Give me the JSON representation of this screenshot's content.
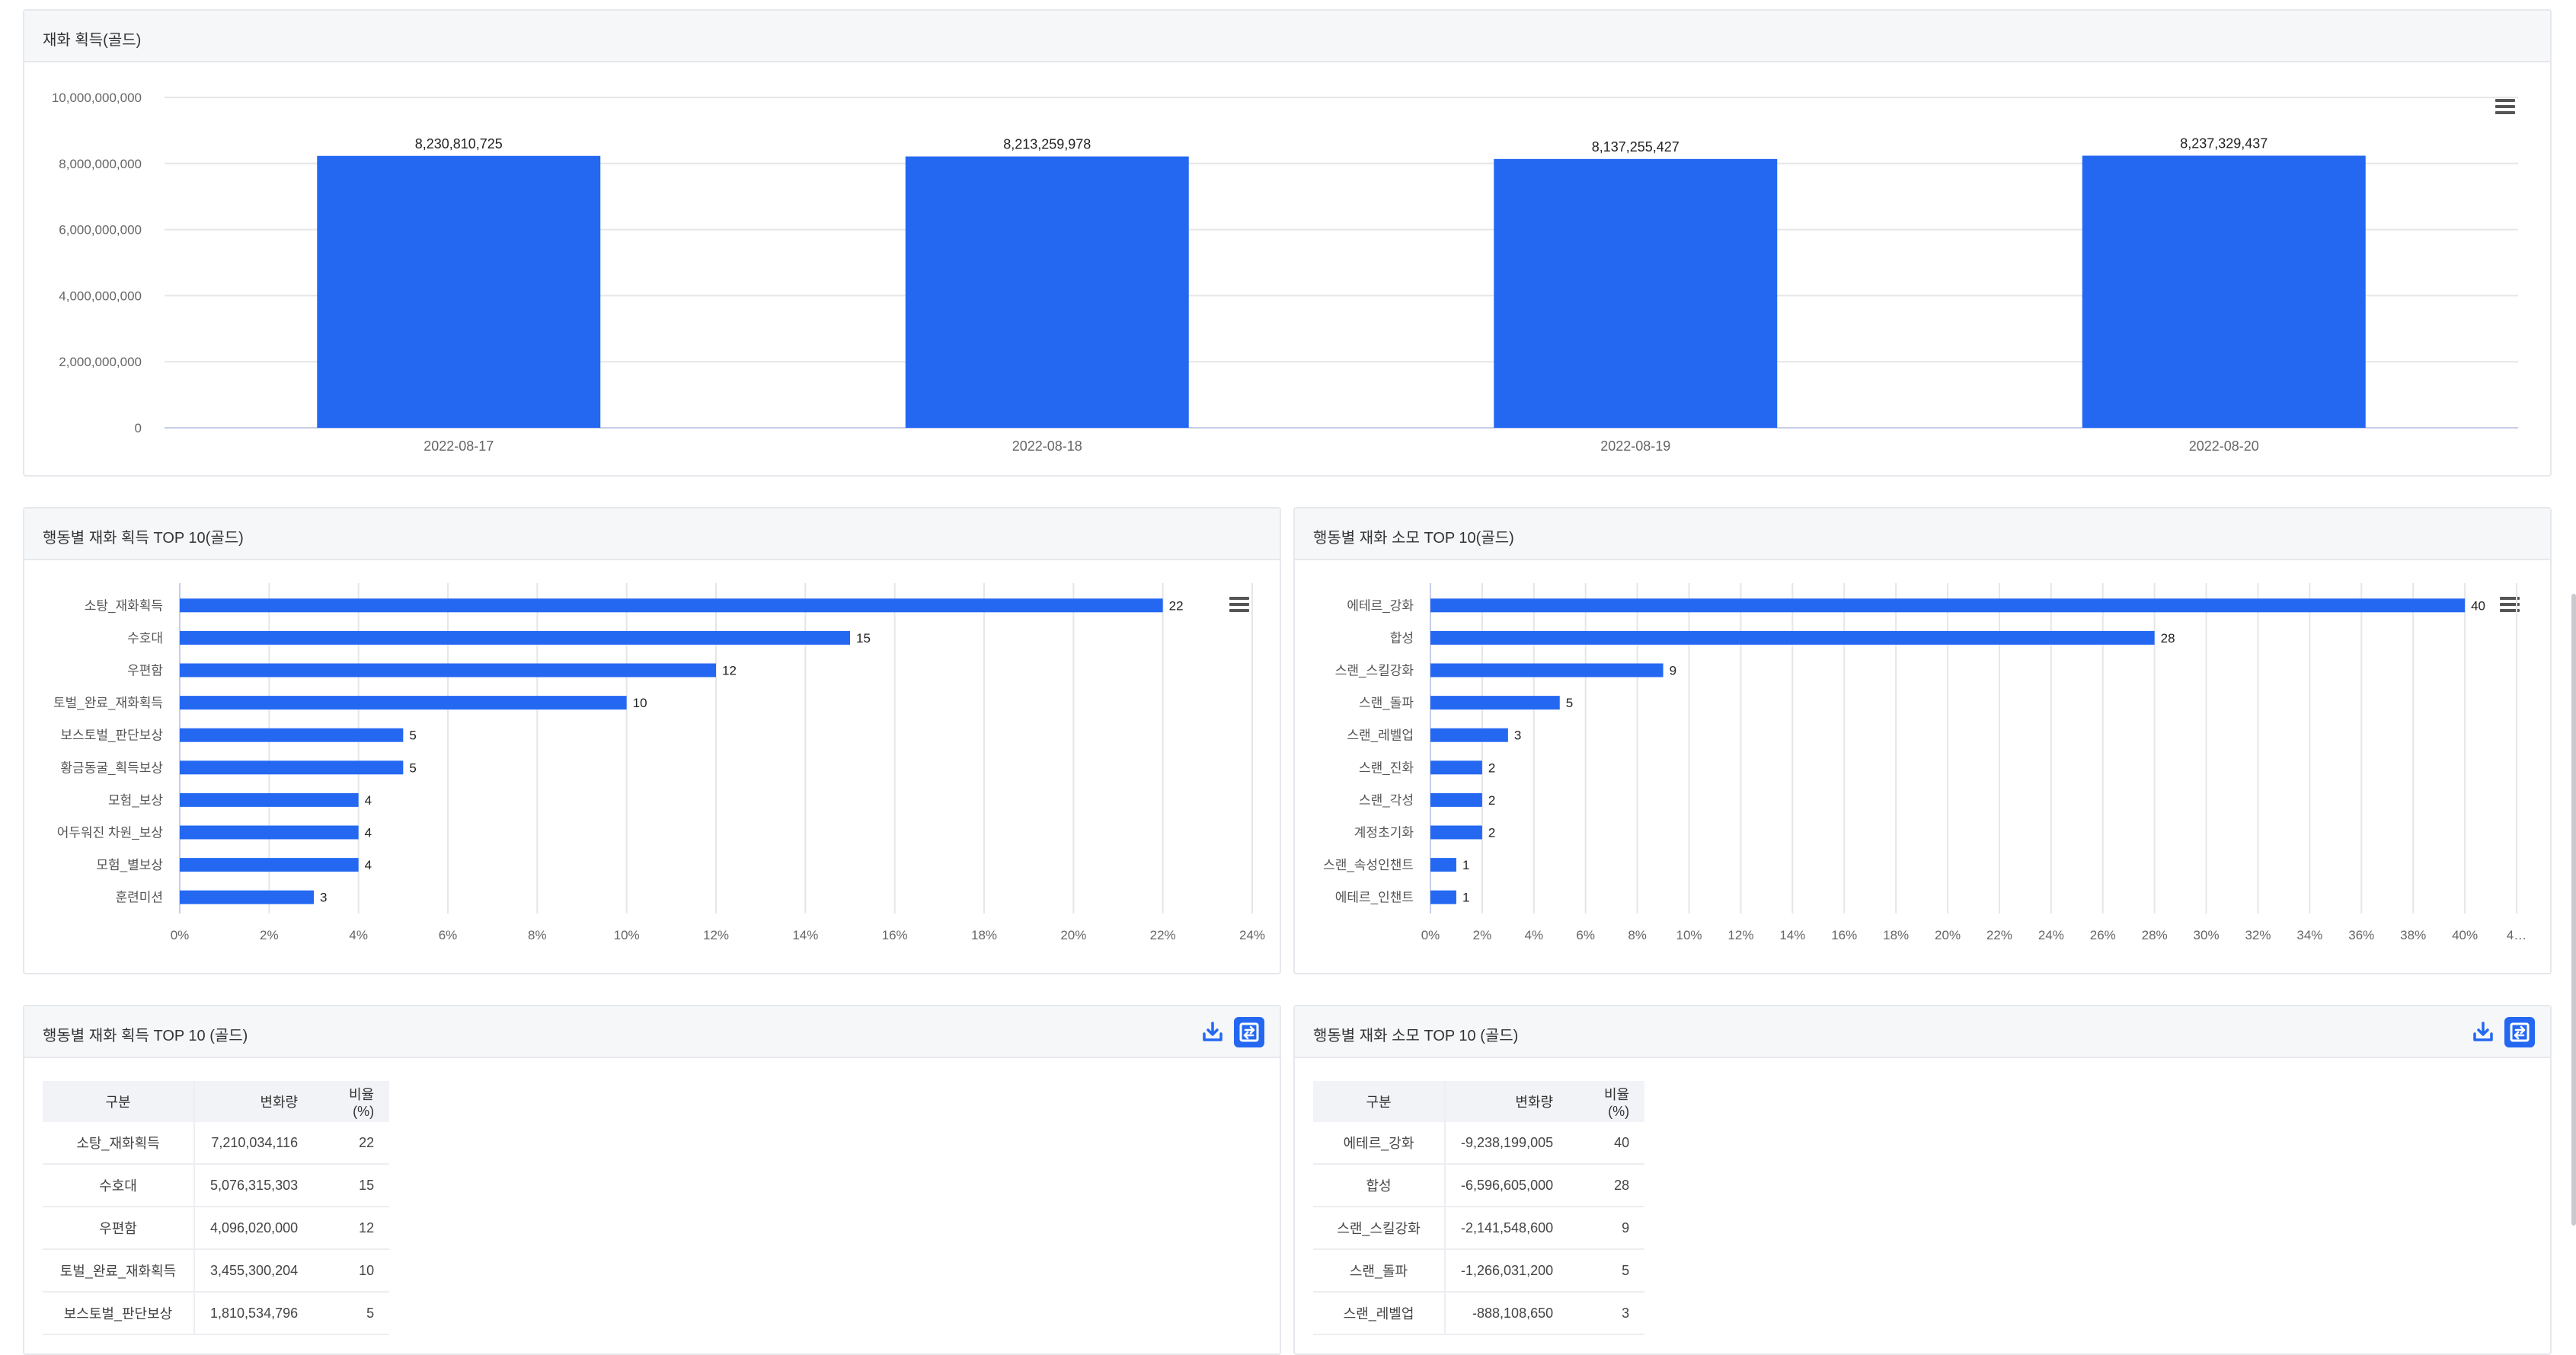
{
  "panels": {
    "p1": {
      "title": "재화 획득(골드)"
    },
    "p2": {
      "title": "행동별 재화 획득 TOP 10(골드)"
    },
    "p3": {
      "title": "행동별 재화 소모 TOP 10(골드)"
    },
    "p4": {
      "title": "행동별 재화 획득 TOP 10 (골드)"
    },
    "p5": {
      "title": "행동별 재화 소모 TOP 10 (골드)"
    }
  },
  "icons": {
    "menu": "hamburger-menu-icon",
    "download": "download-icon",
    "switch": "switch-view-icon"
  },
  "colors": {
    "bar": "#2468f2",
    "grid": "#e6e6e6"
  },
  "chart_data": [
    {
      "type": "bar",
      "title": "재화 획득(골드)",
      "categories": [
        "2022-08-17",
        "2022-08-18",
        "2022-08-19",
        "2022-08-20"
      ],
      "values": [
        8230810725,
        8213259978,
        8137255427,
        8237329437
      ],
      "labels": [
        "8,230,810,725",
        "8,213,259,978",
        "8,137,255,427",
        "8,237,329,437"
      ],
      "yticks": [
        "10,000,000,000",
        "8,000,000,000",
        "6,000,000,000",
        "4,000,000,000",
        "2,000,000,000",
        "0"
      ],
      "ylim": [
        0,
        10000000000
      ]
    },
    {
      "type": "bar",
      "orientation": "horizontal",
      "title": "행동별 재화 획득 TOP 10(골드)",
      "categories": [
        "소탕_재화획득",
        "수호대",
        "우편함",
        "토벌_완료_재화획득",
        "보스토벌_판단보상",
        "황금동굴_획득보상",
        "모험_보상",
        "어두워진 차원_보상",
        "모험_별보상",
        "훈련미션"
      ],
      "values": [
        22,
        15,
        12,
        10,
        5,
        5,
        4,
        4,
        4,
        3
      ],
      "xticks": [
        "0%",
        "2%",
        "4%",
        "6%",
        "8%",
        "10%",
        "12%",
        "14%",
        "16%",
        "18%",
        "20%",
        "22%",
        "24%"
      ],
      "xlim": [
        0,
        24
      ]
    },
    {
      "type": "bar",
      "orientation": "horizontal",
      "title": "행동별 재화 소모 TOP 10(골드)",
      "categories": [
        "에테르_강화",
        "합성",
        "스랜_스킬강화",
        "스랜_돌파",
        "스랜_레벨업",
        "스랜_진화",
        "스랜_각성",
        "계정초기화",
        "스랜_속성인챈트",
        "에테르_인챈트"
      ],
      "values": [
        40,
        28,
        9,
        5,
        3,
        2,
        2,
        2,
        1,
        1
      ],
      "xticks": [
        "0%",
        "2%",
        "4%",
        "6%",
        "8%",
        "10%",
        "12%",
        "14%",
        "16%",
        "18%",
        "20%",
        "22%",
        "24%",
        "26%",
        "28%",
        "30%",
        "32%",
        "34%",
        "36%",
        "38%",
        "40%",
        "4…"
      ],
      "xlim": [
        0,
        42
      ]
    }
  ],
  "tables": {
    "gain": {
      "headers": [
        "구분",
        "변화량",
        "비율(%)"
      ],
      "rows": [
        [
          "소탕_재화획득",
          "7,210,034,116",
          "22"
        ],
        [
          "수호대",
          "5,076,315,303",
          "15"
        ],
        [
          "우편함",
          "4,096,020,000",
          "12"
        ],
        [
          "토벌_완료_재화획득",
          "3,455,300,204",
          "10"
        ],
        [
          "보스토벌_판단보상",
          "1,810,534,796",
          "5"
        ]
      ]
    },
    "spend": {
      "headers": [
        "구분",
        "변화량",
        "비율(%)"
      ],
      "rows": [
        [
          "에테르_강화",
          "-9,238,199,005",
          "40"
        ],
        [
          "합성",
          "-6,596,605,000",
          "28"
        ],
        [
          "스랜_스킬강화",
          "-2,141,548,600",
          "9"
        ],
        [
          "스랜_돌파",
          "-1,266,031,200",
          "5"
        ],
        [
          "스랜_레벨업",
          "-888,108,650",
          "3"
        ]
      ]
    }
  }
}
